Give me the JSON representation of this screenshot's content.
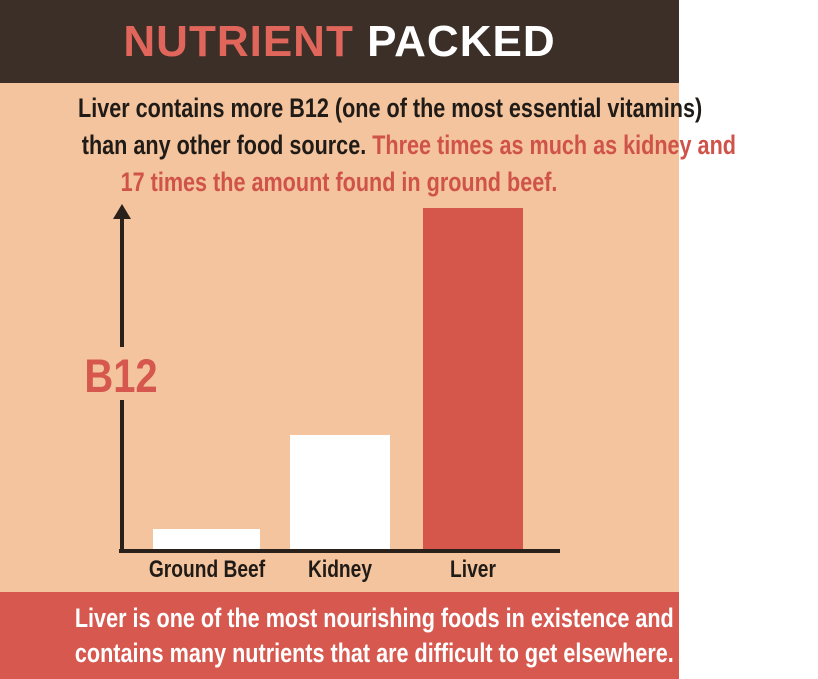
{
  "header": {
    "title_part1": "NUTRIENT",
    "title_part2": "PACKED"
  },
  "intro": {
    "line1": "Liver contains more B12 (one of the most essential vitamins)",
    "line2_dark": "than any other food source. ",
    "line2_red": "Three times as much as kidney and",
    "line3": "17 times the amount found in ground beef."
  },
  "chart_data": {
    "type": "bar",
    "categories": [
      "Ground Beef",
      "Kidney",
      "Liver"
    ],
    "values": [
      1,
      5.7,
      17
    ],
    "value_note": "relative B12 content: liver has 3x kidney and 17x ground beef",
    "title": "",
    "xlabel": "",
    "ylabel": "B12",
    "ylim": [
      0,
      17
    ],
    "grid": false,
    "legend": "none",
    "bar_colors": [
      "#ffffff",
      "#ffffff",
      "#d5574c"
    ],
    "axis_color": "#2a211b"
  },
  "footer": {
    "line1": "Liver is one of the most nourishing foods in existence and",
    "line2": "contains many nutrients that are difficult to get elsewhere."
  },
  "icons": {
    "y_axis_arrow": "arrow-up"
  },
  "colors": {
    "header_bg": "#3b2f27",
    "body_bg": "#f3c49d",
    "accent_red": "#d6584e",
    "title_red": "#e0655b",
    "text_dark": "#201b17",
    "text_white": "#ffffff"
  }
}
